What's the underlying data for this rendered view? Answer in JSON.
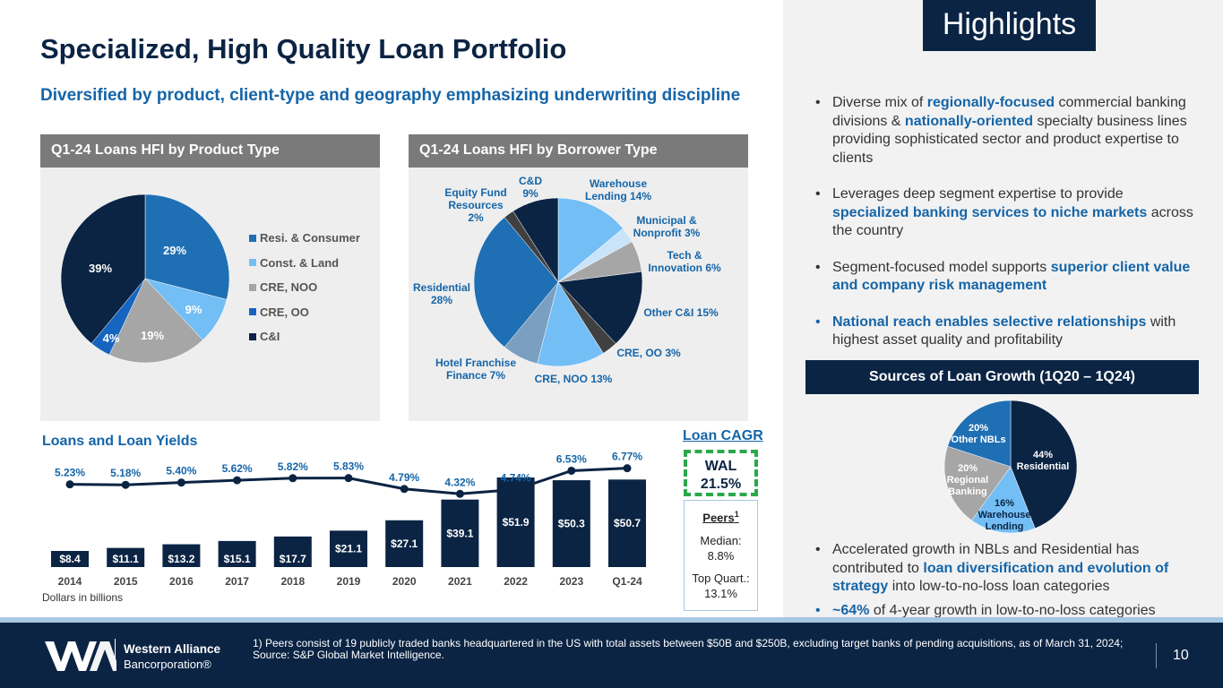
{
  "title": "Specialized, High Quality Loan Portfolio",
  "subtitle": "Diversified by product, client-type and geography emphasizing underwriting discipline",
  "product_panel": {
    "heading": "Q1-24 Loans HFI by Product Type",
    "legend": [
      {
        "label": "Resi. & Consumer",
        "color": "#1f6fb4"
      },
      {
        "label": "Const. & Land",
        "color": "#73bef5"
      },
      {
        "label": "CRE, NOO",
        "color": "#a6a6a6"
      },
      {
        "label": "CRE, OO",
        "color": "#1565c0"
      },
      {
        "label": "C&I",
        "color": "#0b2444"
      }
    ]
  },
  "borrower_panel": {
    "heading": "Q1-24 Loans HFI by Borrower Type"
  },
  "loans_section": {
    "title": "Loans and Loan Yields",
    "note": "Dollars in billions"
  },
  "cagr": {
    "title": "Loan CAGR",
    "wal_label": "WAL",
    "wal_value": "21.5%",
    "peers_label": "Peers",
    "peers_sup": "1",
    "median": "Median:\n8.8%",
    "median_label": "Median:",
    "median_value": "8.8%",
    "top_label": "Top Quart.:",
    "top_value": "13.1%"
  },
  "highlights": {
    "title": "Highlights",
    "sources_title": "Sources of Loan Growth (1Q20 – 1Q24)"
  },
  "footer": {
    "company_line1": "Western Alliance",
    "company_line2": "Bancorporation®",
    "footnote": "1)  Peers consist of 19 publicly traded banks headquartered in the US with total assets between $50B and $250B, excluding target banks of pending acquisitions, as of March 31, 2024; Source: S&P Global Market Intelligence.",
    "page_number": "10"
  },
  "chart_data": [
    {
      "type": "pie",
      "title": "Q1-24 Loans HFI by Product Type",
      "slices": [
        {
          "label": "Resi. & Consumer",
          "value": 29,
          "display": "29%",
          "color": "#1f6fb4"
        },
        {
          "label": "Const. & Land",
          "value": 9,
          "display": "9%",
          "color": "#73bef5"
        },
        {
          "label": "CRE, NOO",
          "value": 19,
          "display": "19%",
          "color": "#a6a6a6"
        },
        {
          "label": "CRE, OO",
          "value": 4,
          "display": "4%",
          "color": "#1565c0"
        },
        {
          "label": "C&I",
          "value": 39,
          "display": "39%",
          "color": "#0b2444"
        }
      ]
    },
    {
      "type": "pie",
      "title": "Q1-24 Loans HFI by Borrower Type",
      "slices": [
        {
          "label": "Warehouse Lending 14%",
          "value": 14,
          "color": "#73bef5"
        },
        {
          "label": "Municipal & Nonprofit 3%",
          "value": 3,
          "color": "#c9e4f8"
        },
        {
          "label": "Tech & Innovation 6%",
          "value": 6,
          "color": "#a6a6a6"
        },
        {
          "label": "Other C&I 15%",
          "value": 15,
          "color": "#0b2444"
        },
        {
          "label": "CRE, OO 3%",
          "value": 3,
          "color": "#404040"
        },
        {
          "label": "CRE, NOO 13%",
          "value": 13,
          "color": "#73bef5"
        },
        {
          "label": "Hotel Franchise Finance 7%",
          "value": 7,
          "color": "#7a9fc0"
        },
        {
          "label": "Residential 28%",
          "value": 28,
          "color": "#1f6fb4"
        },
        {
          "label": "Equity Fund Resources 2%",
          "value": 2,
          "color": "#404040"
        },
        {
          "label": "C&D 9%",
          "value": 9,
          "color": "#0b2444"
        }
      ],
      "labels": {
        "warehouse": [
          "Warehouse",
          "Lending 14%"
        ],
        "municipal": [
          "Municipal &",
          "Nonprofit 3%"
        ],
        "tech": [
          "Tech &",
          "Innovation 6%"
        ],
        "otherci": [
          "Other C&I 15%"
        ],
        "creoo": [
          "CRE, OO 3%"
        ],
        "crenoo": [
          "CRE, NOO 13%"
        ],
        "hotel": [
          "Hotel Franchise",
          "Finance 7%"
        ],
        "residential": [
          "Residential",
          "28%"
        ],
        "equity": [
          "Equity Fund",
          "Resources",
          "2%"
        ],
        "cd": [
          "C&D",
          "9%"
        ]
      }
    },
    {
      "type": "bar",
      "title": "Loans and Loan Yields",
      "categories": [
        "2014",
        "2015",
        "2016",
        "2017",
        "2018",
        "2019",
        "2020",
        "2021",
        "2022",
        "2023",
        "Q1-24"
      ],
      "values": [
        8.4,
        11.1,
        13.2,
        15.1,
        17.7,
        21.1,
        27.1,
        39.1,
        51.9,
        50.3,
        50.7
      ],
      "value_labels": [
        "$8.4",
        "$11.1",
        "$13.2",
        "$15.1",
        "$17.7",
        "$21.1",
        "$27.1",
        "$39.1",
        "$51.9",
        "$50.3",
        "$50.7"
      ],
      "line_series": {
        "name": "Loan Yield",
        "values": [
          5.23,
          5.18,
          5.4,
          5.62,
          5.82,
          5.83,
          4.79,
          4.32,
          4.74,
          6.53,
          6.77
        ],
        "labels": [
          "5.23%",
          "5.18%",
          "5.40%",
          "5.62%",
          "5.82%",
          "5.83%",
          "4.79%",
          "4.32%",
          "4.74%",
          "6.53%",
          "6.77%"
        ]
      },
      "ylabel": "Dollars in billions"
    },
    {
      "type": "pie",
      "title": "Sources of Loan Growth (1Q20 – 1Q24)",
      "slices": [
        {
          "label": "Residential",
          "value": 44,
          "display": "44%",
          "color": "#0b2444"
        },
        {
          "label": "Warehouse Lending",
          "value": 16,
          "display": "16%",
          "color": "#73bef5"
        },
        {
          "label": "Regional Banking",
          "value": 20,
          "display": "20%",
          "color": "#a6a6a6"
        },
        {
          "label": "Other NBLs",
          "value": 20,
          "display": "20%",
          "color": "#1f6fb4"
        }
      ]
    }
  ]
}
